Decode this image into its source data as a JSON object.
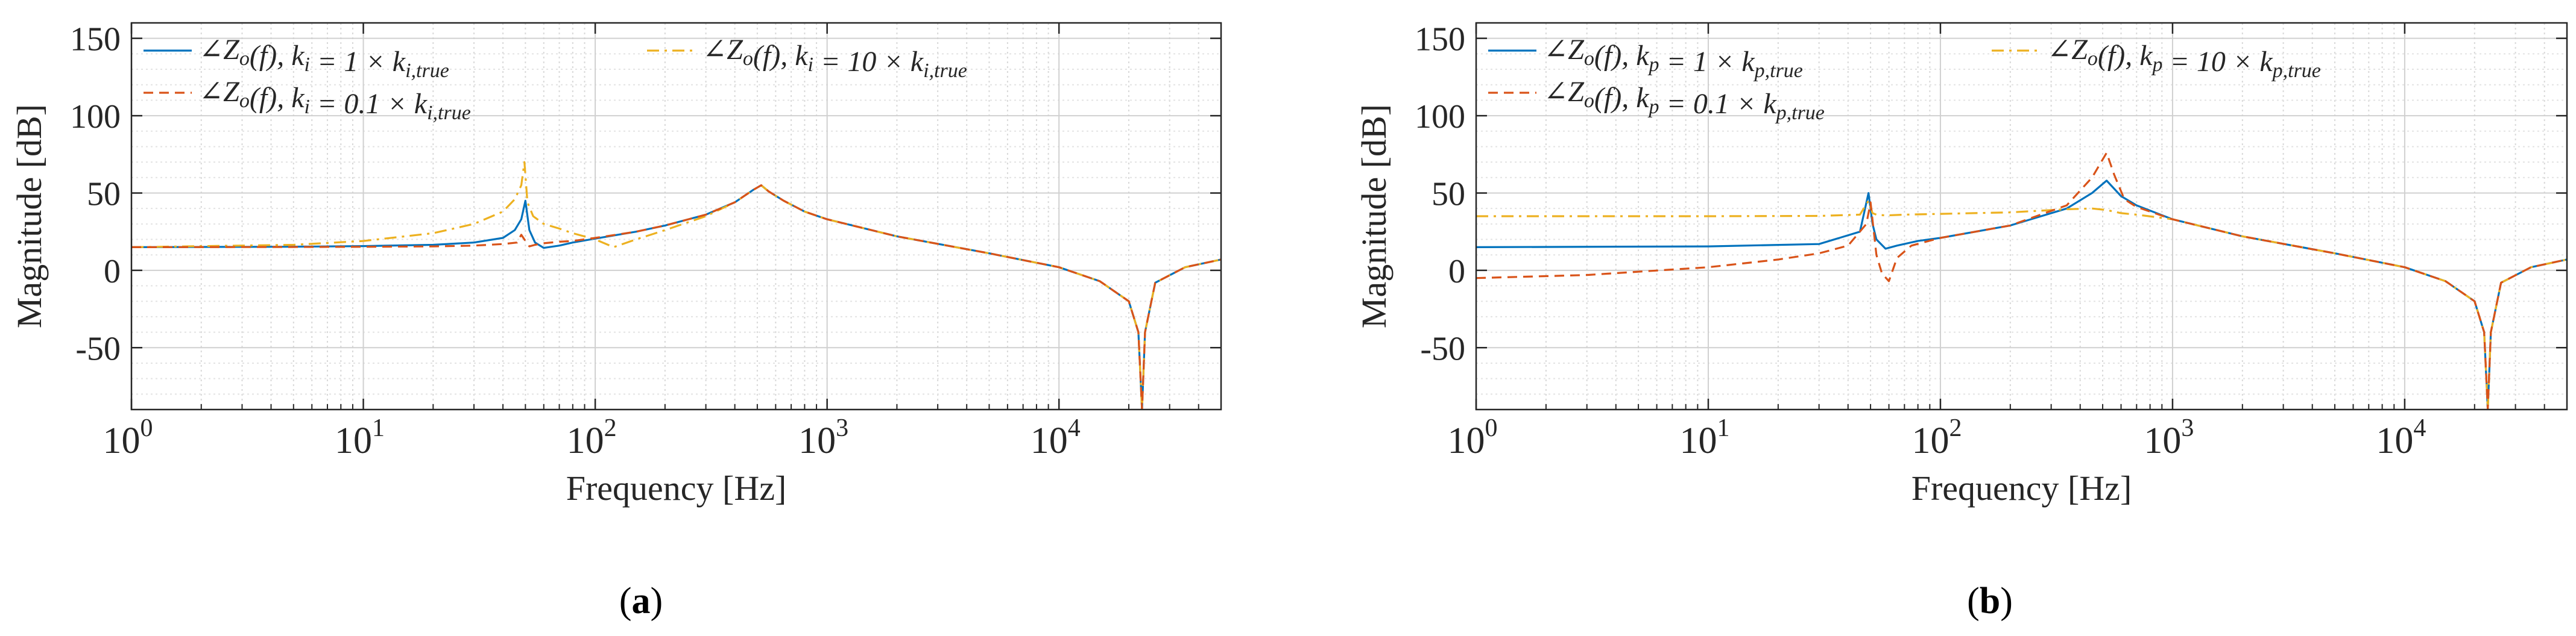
{
  "figure": {
    "captions": [
      "a",
      "b"
    ]
  },
  "colors": {
    "series1": "#0072BD",
    "series2": "#D95319",
    "series3": "#EDB120"
  },
  "chart_data": [
    {
      "type": "line",
      "panel": "a",
      "xlabel": "Frequency [Hz]",
      "ylabel": "Magnitude [dB]",
      "xscale": "log",
      "xlim": [
        1,
        50000
      ],
      "ylim": [
        -90,
        160
      ],
      "xticks": [
        1,
        10,
        100,
        1000,
        10000
      ],
      "xtick_labels": [
        [
          "10",
          "0"
        ],
        [
          "10",
          "1"
        ],
        [
          "10",
          "2"
        ],
        [
          "10",
          "3"
        ],
        [
          "10",
          "4"
        ]
      ],
      "yticks": [
        -50,
        0,
        50,
        100,
        150
      ],
      "ytick_labels": [
        "-50",
        "0",
        "50",
        "100",
        "150"
      ],
      "grid": true,
      "legend": {
        "position": "top-left",
        "entries": [
          "∠Z_o(f), k_i = 1 × k_{i,true}",
          "∠Z_o(f), k_i = 10 × k_{i,true}",
          "∠Z_o(f), k_i = 0.1 × k_{i,true}"
        ]
      },
      "series": [
        {
          "name": "∠Z_o(f), k_i = 1 × k_{i,true}",
          "style": "solid",
          "color": "series1",
          "x": [
            1,
            5,
            10,
            20,
            30,
            40,
            45,
            48,
            50,
            52,
            55,
            60,
            70,
            80,
            100,
            150,
            200,
            300,
            400,
            480,
            520,
            560,
            650,
            800,
            1000,
            2000,
            5000,
            10000,
            15000,
            20000,
            22000,
            22800,
            23500,
            26000,
            35000,
            50000
          ],
          "y": [
            15,
            15.3,
            15.7,
            16.5,
            18,
            21,
            26,
            33,
            45,
            26,
            18,
            14.5,
            16,
            18,
            20.5,
            25,
            29,
            36,
            44,
            52,
            55,
            51,
            45,
            38,
            33,
            22,
            11,
            2,
            -7,
            -20,
            -40,
            -90,
            -40,
            -8,
            2,
            7
          ]
        },
        {
          "name": "∠Z_o(f), k_i = 10 × k_{i,true}",
          "style": "dashdot",
          "color": "series3",
          "x": [
            1,
            5,
            10,
            20,
            30,
            40,
            45,
            48,
            49.5,
            51,
            54,
            60,
            70,
            80,
            100,
            120,
            150,
            200,
            300,
            400,
            480,
            520,
            560,
            650,
            800,
            1000,
            2000,
            5000,
            10000,
            15000,
            20000,
            22000,
            22800,
            23500,
            26000,
            35000,
            50000
          ],
          "y": [
            15,
            16.5,
            19,
            24,
            30,
            38,
            46,
            55,
            70,
            44,
            35,
            30,
            27,
            24,
            20,
            15,
            20,
            26,
            35,
            44,
            52,
            55,
            51,
            45,
            38,
            33,
            22,
            11,
            2,
            -7,
            -20,
            -40,
            -90,
            -40,
            -8,
            2,
            7
          ]
        },
        {
          "name": "∠Z_o(f), k_i = 0.1 × k_{i,true}",
          "style": "dashed",
          "color": "series2",
          "x": [
            1,
            5,
            10,
            20,
            30,
            40,
            46,
            48,
            50,
            52,
            55,
            60,
            70,
            80,
            100,
            150,
            200,
            300,
            400,
            480,
            520,
            560,
            650,
            800,
            1000,
            2000,
            5000,
            10000,
            15000,
            20000,
            22000,
            22800,
            23500,
            26000,
            35000,
            50000
          ],
          "y": [
            15,
            15.1,
            15.2,
            15.5,
            16,
            17,
            18,
            23,
            19,
            15.5,
            16.5,
            17.5,
            18.5,
            19,
            21,
            25,
            29,
            36,
            44,
            52,
            55,
            51,
            45,
            38,
            33,
            22,
            11,
            2,
            -7,
            -20,
            -40,
            -90,
            -40,
            -8,
            2,
            7
          ]
        }
      ]
    },
    {
      "type": "line",
      "panel": "b",
      "xlabel": "Frequency [Hz]",
      "ylabel": "Magnitude [dB]",
      "xscale": "log",
      "xlim": [
        1,
        50000
      ],
      "ylim": [
        -90,
        160
      ],
      "xticks": [
        1,
        10,
        100,
        1000,
        10000
      ],
      "xtick_labels": [
        [
          "10",
          "0"
        ],
        [
          "10",
          "1"
        ],
        [
          "10",
          "2"
        ],
        [
          "10",
          "3"
        ],
        [
          "10",
          "4"
        ]
      ],
      "yticks": [
        -50,
        0,
        50,
        100,
        150
      ],
      "ytick_labels": [
        "-50",
        "0",
        "50",
        "100",
        "150"
      ],
      "grid": true,
      "legend": {
        "position": "top-left",
        "entries": [
          "∠Z_o(f), k_p = 1 × k_{p,true}",
          "∠Z_o(f), k_p = 10 × k_{p,true}",
          "∠Z_o(f), k_p = 0.1 × k_{p,true}"
        ]
      },
      "series": [
        {
          "name": "∠Z_o(f), k_p = 1 × k_{p,true}",
          "style": "solid",
          "color": "series1",
          "x": [
            1,
            10,
            30,
            45,
            49,
            51,
            53,
            58,
            65,
            80,
            100,
            200,
            350,
            450,
            520,
            600,
            700,
            1000,
            2000,
            5000,
            10000,
            15000,
            20000,
            22000,
            22800,
            23500,
            26000,
            35000,
            50000
          ],
          "y": [
            15,
            15.5,
            17,
            25,
            50,
            30,
            20,
            14,
            16,
            19,
            21,
            29,
            40,
            50,
            58,
            48,
            42,
            33,
            22,
            11,
            2,
            -7,
            -20,
            -40,
            -90,
            -40,
            -8,
            2,
            7
          ]
        },
        {
          "name": "∠Z_o(f), k_p = 10 × k_{p,true}",
          "style": "dashdot",
          "color": "series3",
          "x": [
            1,
            10,
            30,
            45,
            49,
            51,
            53,
            58,
            70,
            100,
            200,
            350,
            450,
            520,
            600,
            700,
            1000,
            2000,
            5000,
            10000,
            15000,
            20000,
            22000,
            22800,
            23500,
            26000,
            35000,
            50000
          ],
          "y": [
            35,
            35,
            35.2,
            36,
            45,
            37,
            36,
            35.5,
            36,
            36.5,
            37.5,
            39.5,
            40,
            39,
            37,
            36,
            33,
            22,
            11,
            2,
            -7,
            -20,
            -40,
            -90,
            -40,
            -8,
            2,
            7
          ]
        },
        {
          "name": "∠Z_o(f), k_p = 0.1 × k_{p,true}",
          "style": "dashed",
          "color": "series2",
          "x": [
            1,
            3,
            10,
            20,
            30,
            40,
            48,
            50,
            53,
            56,
            60,
            65,
            75,
            100,
            200,
            350,
            450,
            520,
            560,
            620,
            700,
            1000,
            2000,
            5000,
            10000,
            15000,
            20000,
            22000,
            22800,
            23500,
            26000,
            35000,
            50000
          ],
          "y": [
            -5,
            -3,
            2,
            7,
            11,
            16,
            30,
            44,
            10,
            -2,
            -7,
            8,
            16,
            21,
            29,
            42,
            60,
            76,
            62,
            46,
            41,
            33,
            22,
            11,
            2,
            -7,
            -20,
            -40,
            -90,
            -40,
            -8,
            2,
            7
          ]
        }
      ]
    }
  ]
}
